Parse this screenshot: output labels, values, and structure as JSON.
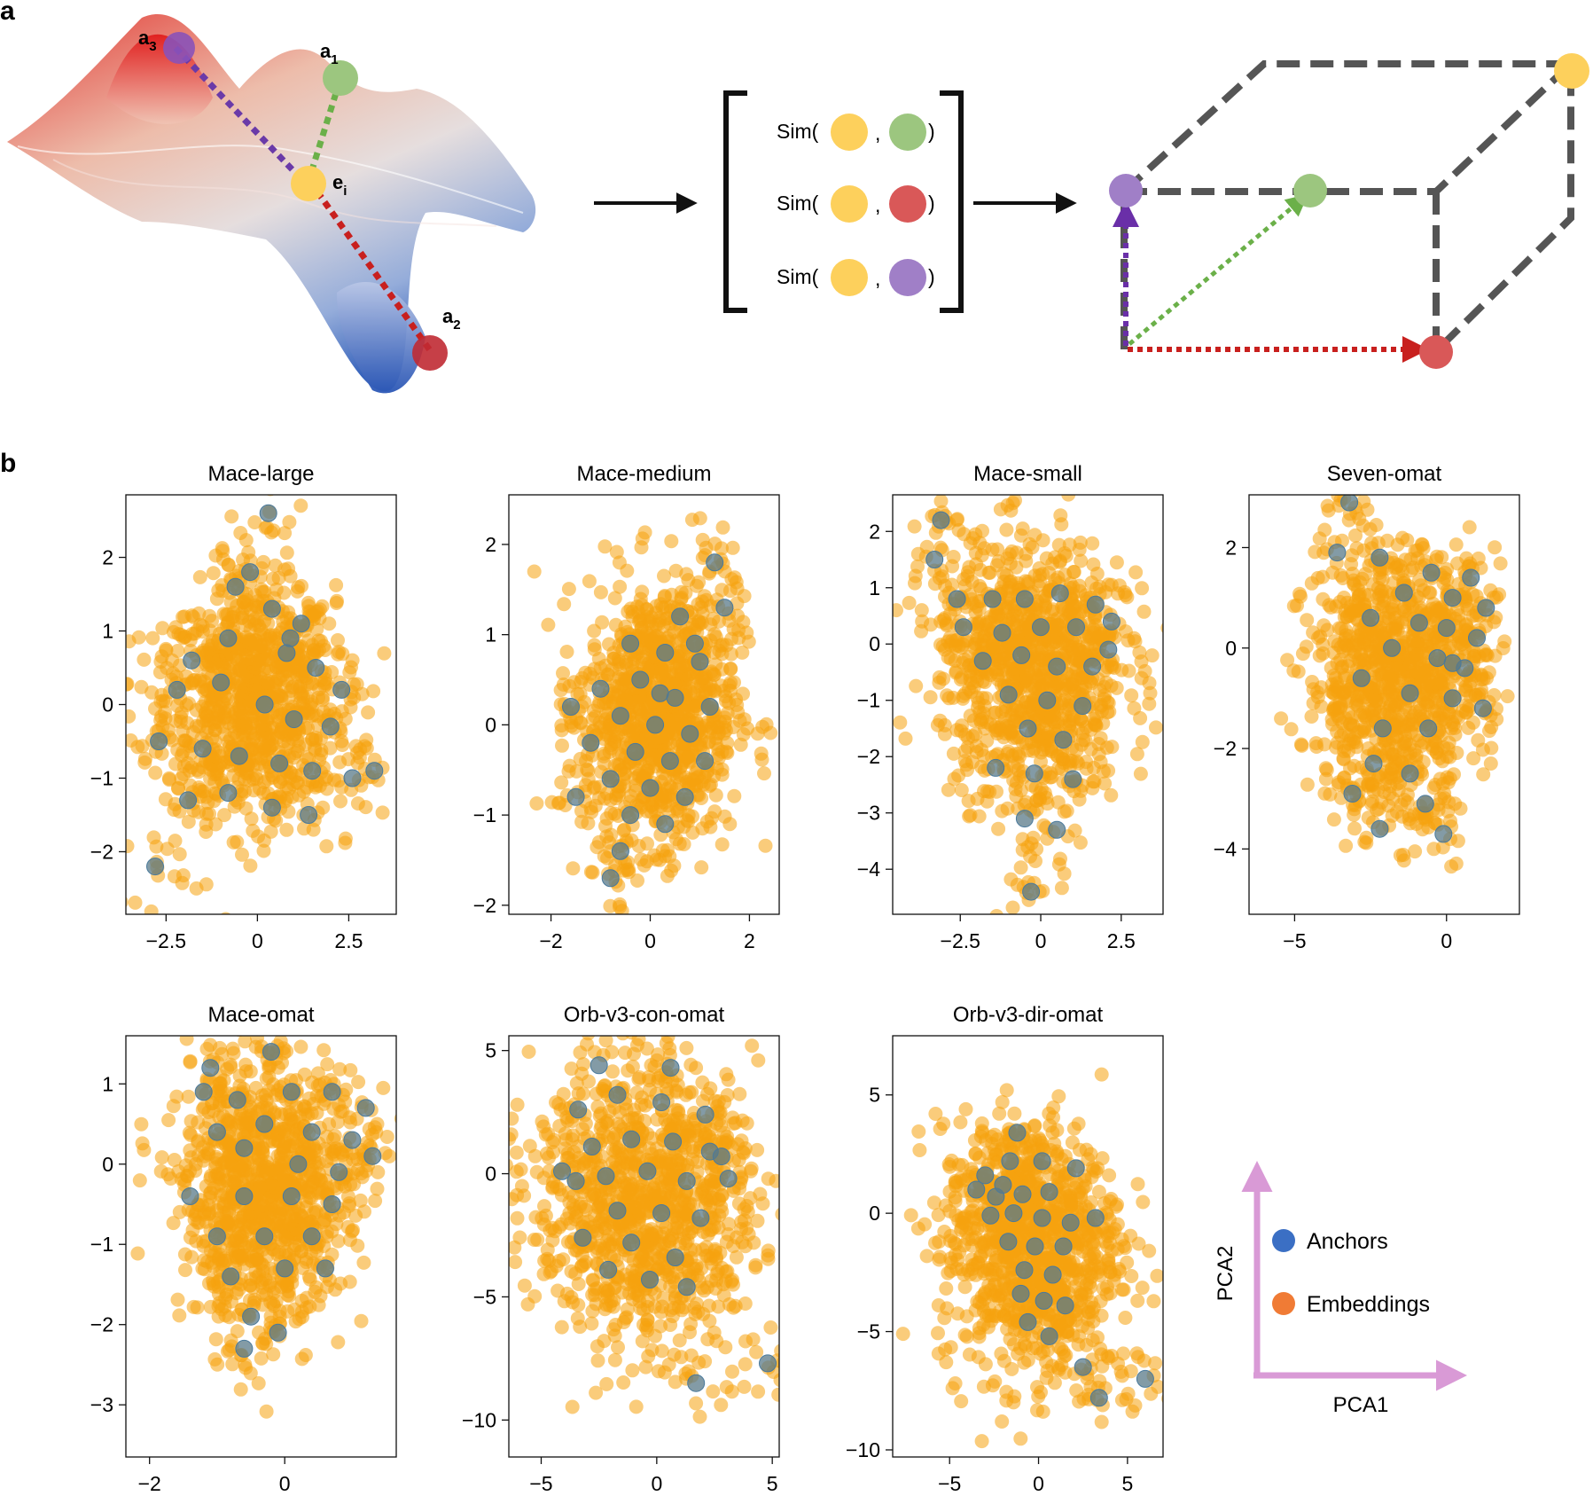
{
  "panel_a": {
    "label": "a",
    "surface_labels": {
      "a3": "a",
      "a3_sub": "3",
      "a1": "a",
      "a1_sub": "1",
      "a2": "a",
      "a2_sub": "2",
      "ei": "e",
      "ei_sub": "i"
    },
    "sim_prefix": "Sim(",
    "sim_comma": ",",
    "sim_suffix": ")",
    "colors": {
      "embedding": "#fdd05c",
      "anchor1": "#9cc67f",
      "anchor2": "#d95858",
      "anchor3": "#a07fc7"
    }
  },
  "panel_b": {
    "label": "b",
    "legend": {
      "anchors": "Anchors",
      "embeddings": "Embeddings",
      "xaxis": "PCA1",
      "yaxis": "PCA2",
      "anchor_color": "#3b6fc4",
      "embedding_color": "#f07b35",
      "arrow_color": "#d99ad6"
    }
  },
  "chart_data": [
    {
      "type": "scatter",
      "title": "Mace-large",
      "xlim": [
        -3.6,
        3.8
      ],
      "ylim": [
        -2.85,
        2.85
      ],
      "xticks": [
        -2.5,
        0,
        2.5
      ],
      "xtick_labels": [
        "−2.5",
        "0",
        "2.5"
      ],
      "yticks": [
        -2,
        -1,
        0,
        1,
        2
      ],
      "ytick_labels": [
        "−2",
        "−1",
        "0",
        "1",
        "2"
      ],
      "embeddings_centroid": [
        -0.2,
        0.1
      ],
      "embeddings_spread": [
        1.55,
        1.0
      ],
      "anchors": [
        [
          0.3,
          2.6
        ],
        [
          -0.6,
          1.6
        ],
        [
          0.4,
          1.3
        ],
        [
          1.2,
          1.1
        ],
        [
          -1.8,
          0.6
        ],
        [
          -0.8,
          0.9
        ],
        [
          0.8,
          0.7
        ],
        [
          1.6,
          0.5
        ],
        [
          -2.2,
          0.2
        ],
        [
          -1.0,
          0.3
        ],
        [
          0.2,
          0.0
        ],
        [
          1.0,
          -0.2
        ],
        [
          2.0,
          -0.3
        ],
        [
          -2.7,
          -0.5
        ],
        [
          -1.5,
          -0.6
        ],
        [
          -0.5,
          -0.7
        ],
        [
          0.6,
          -0.8
        ],
        [
          1.5,
          -0.9
        ],
        [
          2.6,
          -1.0
        ],
        [
          -1.9,
          -1.3
        ],
        [
          -0.8,
          -1.2
        ],
        [
          0.4,
          -1.4
        ],
        [
          1.4,
          -1.5
        ],
        [
          3.2,
          -0.9
        ],
        [
          -2.8,
          -2.2
        ],
        [
          0.9,
          0.9
        ],
        [
          -0.2,
          1.8
        ],
        [
          2.3,
          0.2
        ]
      ]
    },
    {
      "type": "scatter",
      "title": "Mace-medium",
      "xlim": [
        -2.85,
        2.6
      ],
      "ylim": [
        -2.1,
        2.55
      ],
      "xticks": [
        -2,
        0,
        2
      ],
      "xtick_labels": [
        "−2",
        "0",
        "2"
      ],
      "yticks": [
        -2,
        -1,
        0,
        1,
        2
      ],
      "ytick_labels": [
        "−2",
        "−1",
        "0",
        "1",
        "2"
      ],
      "embeddings_centroid": [
        0.2,
        0.2
      ],
      "embeddings_spread": [
        1.0,
        0.95
      ],
      "anchors": [
        [
          1.3,
          1.8
        ],
        [
          1.5,
          1.3
        ],
        [
          0.6,
          1.2
        ],
        [
          -0.4,
          0.9
        ],
        [
          0.3,
          0.8
        ],
        [
          1.0,
          0.7
        ],
        [
          -1.0,
          0.4
        ],
        [
          -0.2,
          0.5
        ],
        [
          0.5,
          0.3
        ],
        [
          1.2,
          0.2
        ],
        [
          -0.6,
          0.1
        ],
        [
          0.1,
          0.0
        ],
        [
          0.8,
          -0.1
        ],
        [
          -1.2,
          -0.2
        ],
        [
          -0.3,
          -0.3
        ],
        [
          0.4,
          -0.4
        ],
        [
          1.1,
          -0.4
        ],
        [
          -0.8,
          -0.6
        ],
        [
          0.0,
          -0.7
        ],
        [
          0.7,
          -0.8
        ],
        [
          -1.5,
          -0.8
        ],
        [
          -0.4,
          -1.0
        ],
        [
          0.3,
          -1.1
        ],
        [
          -0.6,
          -1.4
        ],
        [
          -0.8,
          -1.7
        ],
        [
          0.9,
          0.9
        ],
        [
          -1.6,
          0.2
        ],
        [
          0.2,
          0.35
        ]
      ]
    },
    {
      "type": "scatter",
      "title": "Mace-small",
      "xlim": [
        -4.6,
        3.8
      ],
      "ylim": [
        -4.8,
        2.65
      ],
      "xticks": [
        -2.5,
        0,
        2.5
      ],
      "xtick_labels": [
        "−2.5",
        "0",
        "2.5"
      ],
      "yticks": [
        -4,
        -3,
        -2,
        -1,
        0,
        1,
        2
      ],
      "ytick_labels": [
        "−4",
        "−3",
        "−2",
        "−1",
        "0",
        "1",
        "2"
      ],
      "embeddings_centroid": [
        -0.3,
        -0.4
      ],
      "embeddings_spread": [
        1.9,
        1.5
      ],
      "anchors": [
        [
          -3.1,
          2.2
        ],
        [
          -3.3,
          1.5
        ],
        [
          -2.6,
          0.8
        ],
        [
          -1.5,
          0.8
        ],
        [
          -0.5,
          0.8
        ],
        [
          0.6,
          0.9
        ],
        [
          1.7,
          0.7
        ],
        [
          -2.4,
          0.3
        ],
        [
          -1.2,
          0.2
        ],
        [
          0.0,
          0.3
        ],
        [
          1.1,
          0.3
        ],
        [
          2.2,
          0.4
        ],
        [
          -1.8,
          -0.3
        ],
        [
          -0.6,
          -0.2
        ],
        [
          0.5,
          -0.4
        ],
        [
          1.6,
          -0.4
        ],
        [
          -1.0,
          -0.9
        ],
        [
          0.2,
          -1.0
        ],
        [
          1.3,
          -1.1
        ],
        [
          -0.4,
          -1.5
        ],
        [
          0.7,
          -1.7
        ],
        [
          -1.4,
          -2.2
        ],
        [
          -0.2,
          -2.3
        ],
        [
          1.0,
          -2.4
        ],
        [
          -0.5,
          -3.1
        ],
        [
          0.5,
          -3.3
        ],
        [
          -0.3,
          -4.4
        ],
        [
          2.1,
          -0.1
        ]
      ]
    },
    {
      "type": "scatter",
      "title": "Seven-omat",
      "xlim": [
        -6.5,
        2.4
      ],
      "ylim": [
        -5.3,
        3.05
      ],
      "xticks": [
        -5,
        0
      ],
      "xtick_labels": [
        "−5",
        "0"
      ],
      "yticks": [
        -4,
        -2,
        0,
        2
      ],
      "ytick_labels": [
        "−4",
        "−2",
        "0",
        "2"
      ],
      "embeddings_centroid": [
        -1.8,
        -0.6
      ],
      "embeddings_spread": [
        1.9,
        1.6
      ],
      "anchors": [
        [
          -3.2,
          2.9
        ],
        [
          -3.6,
          1.9
        ],
        [
          -2.2,
          1.8
        ],
        [
          -0.5,
          1.5
        ],
        [
          0.8,
          1.4
        ],
        [
          -1.4,
          1.1
        ],
        [
          0.2,
          1.0
        ],
        [
          1.3,
          0.8
        ],
        [
          -2.5,
          0.6
        ],
        [
          -0.9,
          0.5
        ],
        [
          0.0,
          0.4
        ],
        [
          1.0,
          0.2
        ],
        [
          -1.8,
          0.0
        ],
        [
          -0.3,
          -0.2
        ],
        [
          0.6,
          -0.4
        ],
        [
          -2.8,
          -0.6
        ],
        [
          -1.2,
          -0.9
        ],
        [
          0.2,
          -1.0
        ],
        [
          -2.1,
          -1.6
        ],
        [
          -0.6,
          -1.6
        ],
        [
          -2.4,
          -2.3
        ],
        [
          -1.2,
          -2.5
        ],
        [
          -3.1,
          -2.9
        ],
        [
          -0.7,
          -3.1
        ],
        [
          -2.2,
          -3.6
        ],
        [
          -0.1,
          -3.7
        ],
        [
          1.2,
          -1.2
        ],
        [
          0.2,
          -0.3
        ]
      ]
    },
    {
      "type": "scatter",
      "title": "Mace-omat",
      "xlim": [
        -2.35,
        1.65
      ],
      "ylim": [
        -3.65,
        1.6
      ],
      "xticks": [
        -2,
        0
      ],
      "xtick_labels": [
        "−2",
        "0"
      ],
      "yticks": [
        -3,
        -2,
        -1,
        0,
        1
      ],
      "ytick_labels": [
        "−3",
        "−2",
        "−1",
        "0",
        "1"
      ],
      "embeddings_centroid": [
        -0.3,
        -0.4
      ],
      "embeddings_spread": [
        0.8,
        1.0
      ],
      "anchors": [
        [
          -1.1,
          1.2
        ],
        [
          -0.2,
          1.4
        ],
        [
          -1.2,
          0.9
        ],
        [
          -0.7,
          0.8
        ],
        [
          0.1,
          0.9
        ],
        [
          0.7,
          0.9
        ],
        [
          1.2,
          0.7
        ],
        [
          -1.0,
          0.4
        ],
        [
          -0.3,
          0.5
        ],
        [
          0.4,
          0.4
        ],
        [
          1.0,
          0.3
        ],
        [
          -0.6,
          0.2
        ],
        [
          0.2,
          0.0
        ],
        [
          0.8,
          -0.1
        ],
        [
          -1.4,
          -0.4
        ],
        [
          -0.6,
          -0.4
        ],
        [
          0.1,
          -0.4
        ],
        [
          0.7,
          -0.5
        ],
        [
          -1.0,
          -0.9
        ],
        [
          -0.3,
          -0.9
        ],
        [
          0.4,
          -0.9
        ],
        [
          -0.8,
          -1.4
        ],
        [
          0.0,
          -1.3
        ],
        [
          0.6,
          -1.3
        ],
        [
          -0.5,
          -1.9
        ],
        [
          -0.1,
          -2.1
        ],
        [
          -0.6,
          -2.3
        ],
        [
          1.3,
          0.1
        ]
      ]
    },
    {
      "type": "scatter",
      "title": "Orb-v3-con-omat",
      "xlim": [
        -6.4,
        5.3
      ],
      "ylim": [
        -11.5,
        5.6
      ],
      "xticks": [
        -5,
        0,
        5
      ],
      "xtick_labels": [
        "−5",
        "0",
        "5"
      ],
      "yticks": [
        -10,
        -5,
        0,
        5
      ],
      "ytick_labels": [
        "−10",
        "−5",
        "0",
        "5"
      ],
      "embeddings_centroid": [
        -0.5,
        -1.6
      ],
      "embeddings_spread": [
        3.2,
        3.8
      ],
      "anchors": [
        [
          0.6,
          4.3
        ],
        [
          -2.5,
          4.4
        ],
        [
          -3.4,
          2.6
        ],
        [
          -1.7,
          3.2
        ],
        [
          0.2,
          2.9
        ],
        [
          2.1,
          2.4
        ],
        [
          -2.8,
          1.1
        ],
        [
          -1.1,
          1.4
        ],
        [
          0.7,
          1.3
        ],
        [
          2.3,
          0.9
        ],
        [
          -4.1,
          0.1
        ],
        [
          -2.2,
          -0.1
        ],
        [
          -0.4,
          0.1
        ],
        [
          1.3,
          -0.3
        ],
        [
          3.1,
          -0.2
        ],
        [
          -1.7,
          -1.5
        ],
        [
          0.2,
          -1.6
        ],
        [
          1.9,
          -1.8
        ],
        [
          -3.2,
          -2.6
        ],
        [
          -1.1,
          -2.8
        ],
        [
          0.8,
          -3.4
        ],
        [
          -2.1,
          -3.9
        ],
        [
          -0.3,
          -4.3
        ],
        [
          1.3,
          -4.6
        ],
        [
          1.7,
          -8.5
        ],
        [
          4.8,
          -7.7
        ],
        [
          -3.5,
          -0.3
        ],
        [
          2.8,
          0.7
        ]
      ]
    },
    {
      "type": "scatter",
      "title": "Orb-v3-dir-omat",
      "xlim": [
        -8.2,
        7.0
      ],
      "ylim": [
        -10.3,
        7.5
      ],
      "xticks": [
        -5,
        0,
        5
      ],
      "xtick_labels": [
        "−5",
        "0",
        "5"
      ],
      "yticks": [
        -10,
        -5,
        0,
        5
      ],
      "ytick_labels": [
        "−10",
        "−5",
        "0",
        "5"
      ],
      "embeddings_centroid": [
        -0.5,
        -1.5
      ],
      "embeddings_spread": [
        3.4,
        3.6
      ],
      "anchors": [
        [
          -1.2,
          3.4
        ],
        [
          -3.0,
          1.6
        ],
        [
          -1.6,
          2.2
        ],
        [
          0.2,
          2.2
        ],
        [
          2.1,
          1.9
        ],
        [
          -3.5,
          1.0
        ],
        [
          -2.4,
          0.7
        ],
        [
          -0.9,
          0.8
        ],
        [
          0.6,
          0.9
        ],
        [
          -2.7,
          -0.1
        ],
        [
          -1.4,
          0.0
        ],
        [
          0.2,
          -0.2
        ],
        [
          1.8,
          -0.4
        ],
        [
          3.2,
          -0.2
        ],
        [
          -1.7,
          -1.2
        ],
        [
          -0.2,
          -1.4
        ],
        [
          1.4,
          -1.4
        ],
        [
          -0.8,
          -2.4
        ],
        [
          0.8,
          -2.6
        ],
        [
          -1.0,
          -3.4
        ],
        [
          0.3,
          -3.7
        ],
        [
          1.5,
          -3.9
        ],
        [
          -0.6,
          -4.6
        ],
        [
          0.6,
          -5.2
        ],
        [
          2.5,
          -6.5
        ],
        [
          3.4,
          -7.8
        ],
        [
          6.0,
          -7.0
        ],
        [
          -2.0,
          1.2
        ]
      ]
    }
  ]
}
